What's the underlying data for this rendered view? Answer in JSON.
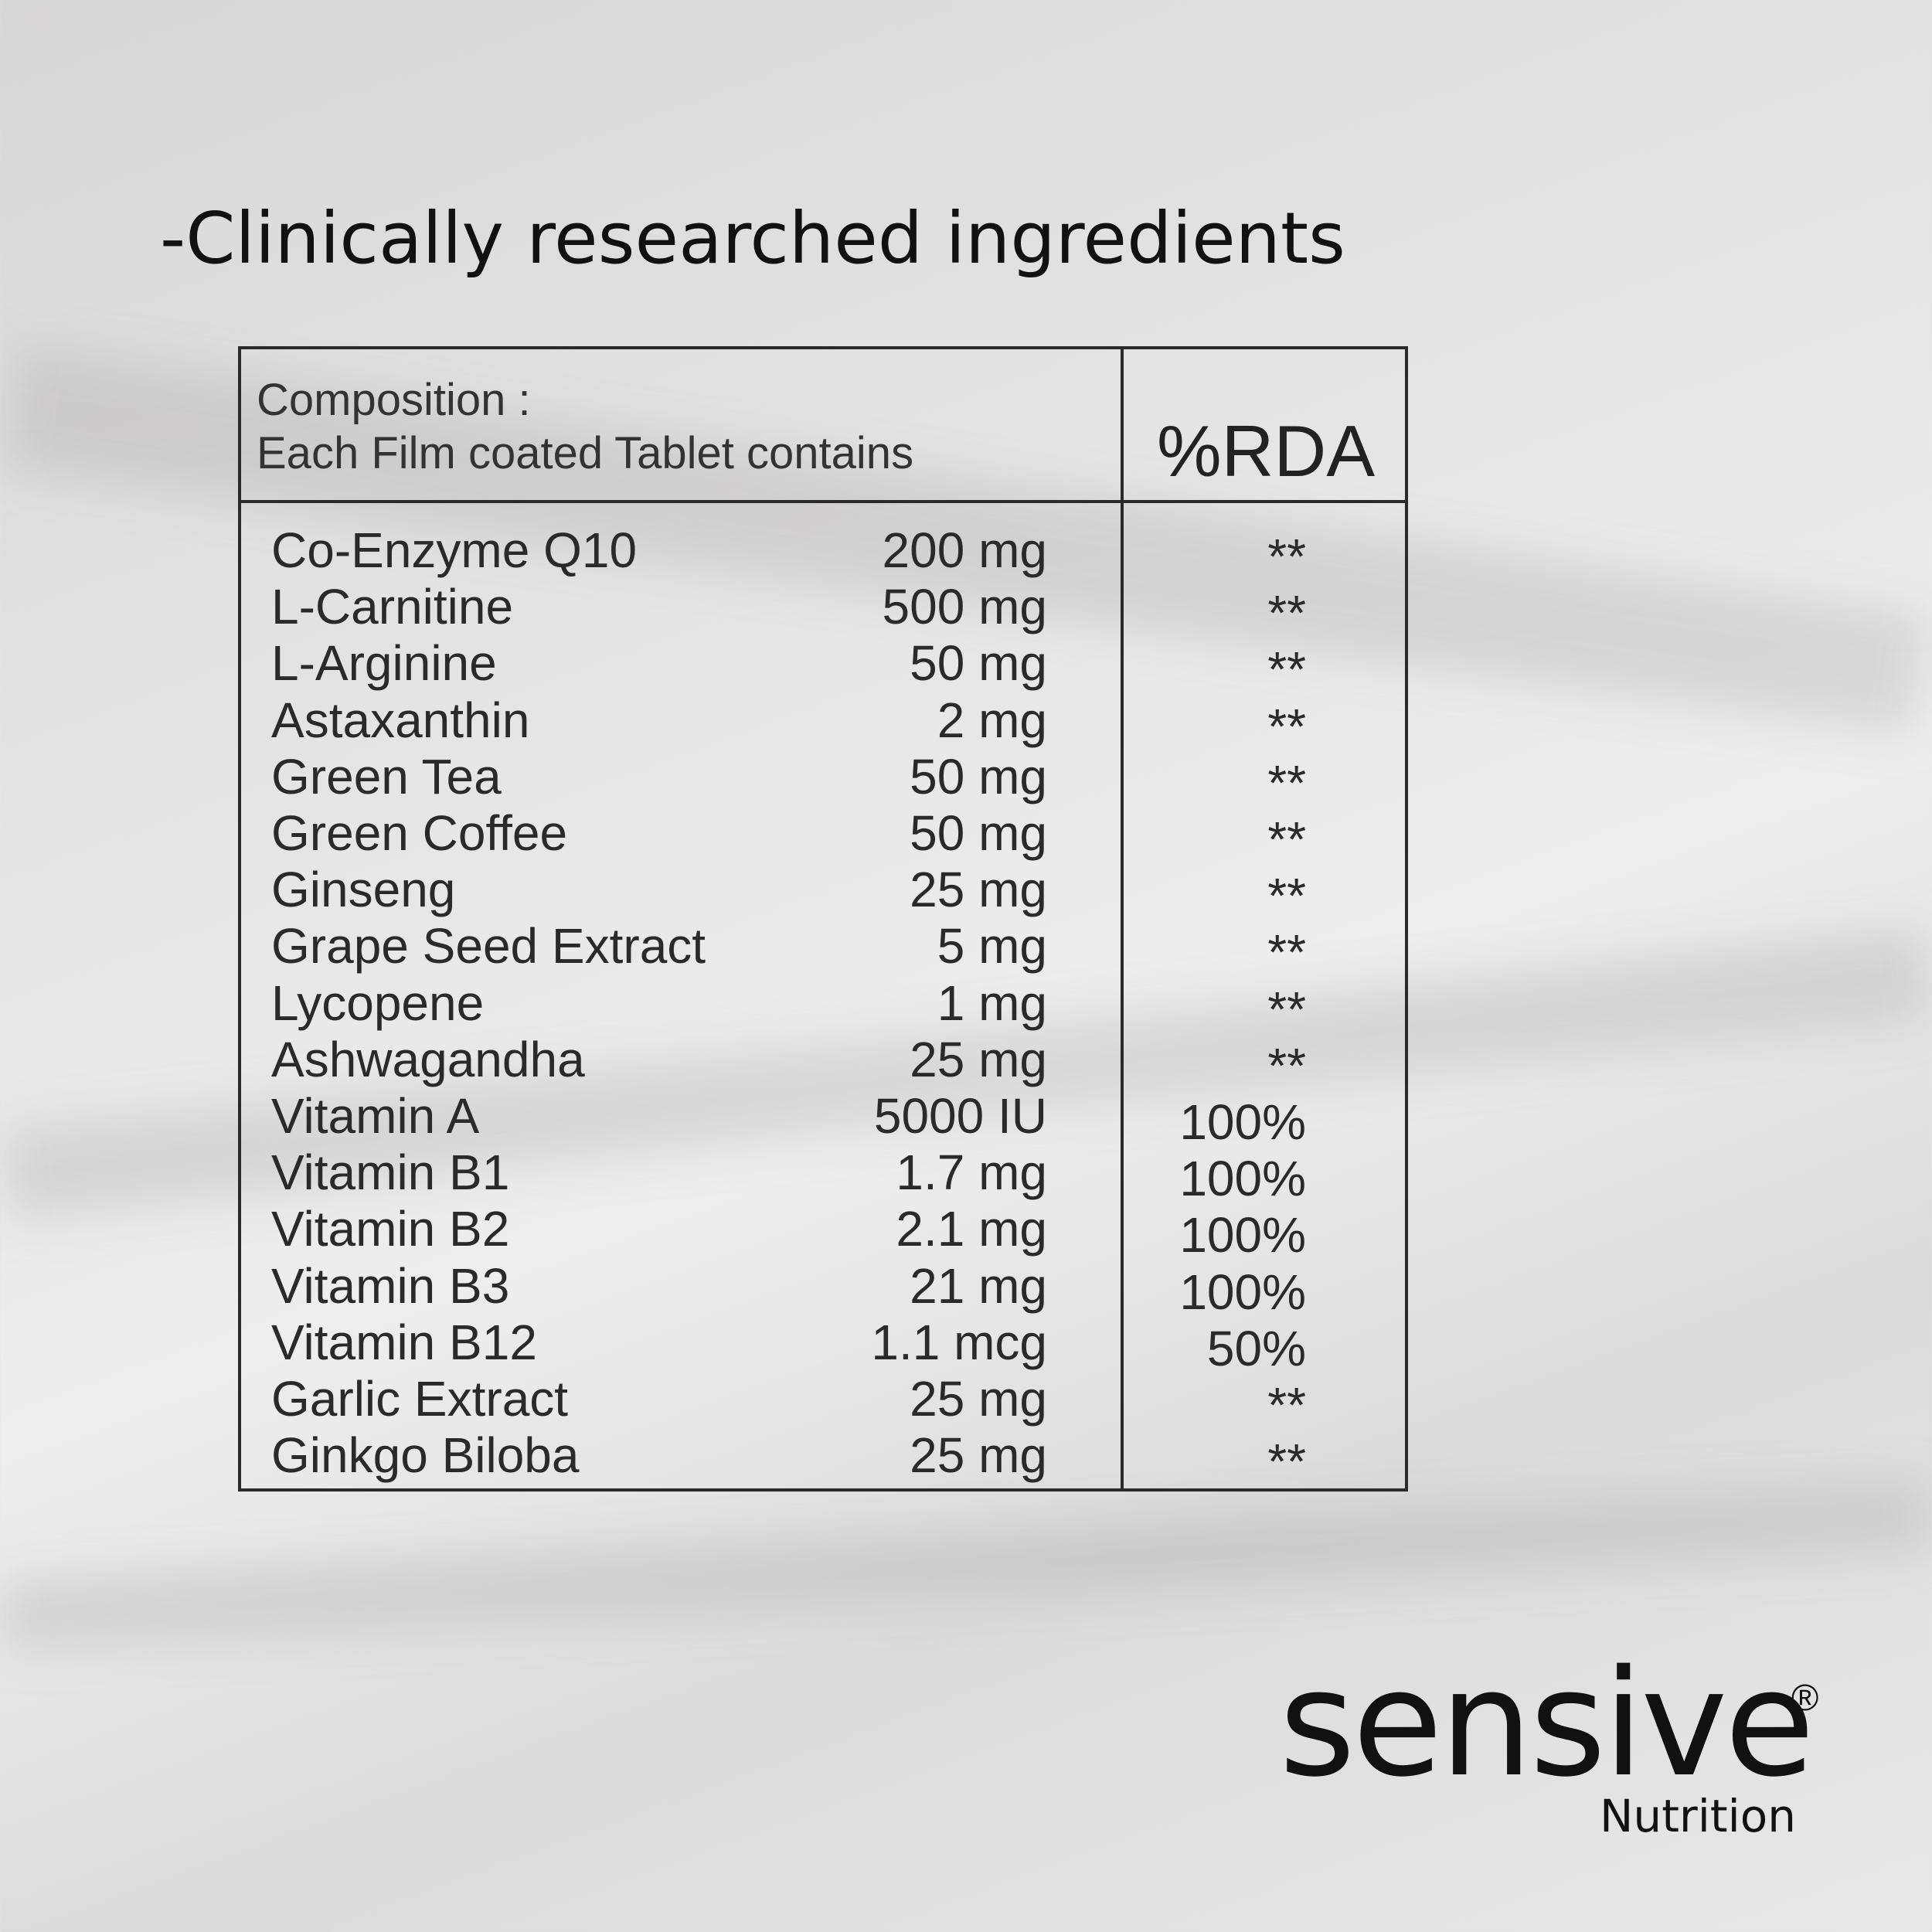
{
  "heading": "-Clinically researched ingredients",
  "table": {
    "header": {
      "line1": "Composition :",
      "line2": "Each Film coated Tablet contains",
      "rda": "%RDA"
    },
    "rows": [
      [
        "Co-Enzyme Q10",
        "200 mg",
        "**"
      ],
      [
        "L-Carnitine",
        "500 mg",
        "**"
      ],
      [
        "L-Arginine",
        "50 mg",
        "**"
      ],
      [
        "Astaxanthin",
        "2 mg",
        "**"
      ],
      [
        "Green Tea",
        "50 mg",
        "**"
      ],
      [
        "Green Coffee",
        "50 mg",
        "**"
      ],
      [
        "Ginseng",
        "25 mg",
        "**"
      ],
      [
        "Grape Seed Extract",
        "5 mg",
        "**"
      ],
      [
        "Lycopene",
        "1 mg",
        "**"
      ],
      [
        "Ashwagandha",
        "25 mg",
        "**"
      ],
      [
        "Vitamin A",
        "5000 IU",
        "100%"
      ],
      [
        "Vitamin B1",
        "1.7 mg",
        "100%"
      ],
      [
        "Vitamin B2",
        "2.1 mg",
        "100%"
      ],
      [
        "Vitamin B3",
        "21 mg",
        "100%"
      ],
      [
        "Vitamin B12",
        "1.1 mcg",
        "50%"
      ],
      [
        "Garlic Extract",
        "25 mg",
        "**"
      ],
      [
        "Ginkgo Biloba",
        "25 mg",
        "**"
      ]
    ]
  },
  "brand": {
    "name": "sensive",
    "mark": "®",
    "sub": "Nutrition"
  }
}
